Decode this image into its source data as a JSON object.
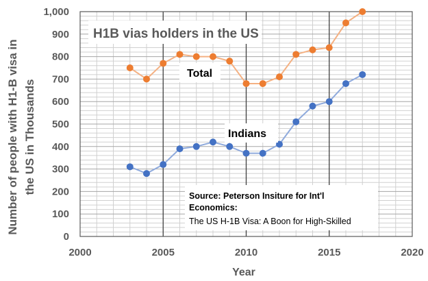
{
  "chart_data": {
    "type": "line",
    "title": "H1B vias holders in the US",
    "xlabel": "Year",
    "ylabel_line1": "Number of people with H1-B visa in",
    "ylabel_line2": "the US in Thousands",
    "xlim": [
      2000,
      2020
    ],
    "ylim": [
      0,
      1000
    ],
    "x_ticks": [
      "2000",
      "2005",
      "2010",
      "2015",
      "2020"
    ],
    "y_ticks": [
      "0",
      "100",
      "200",
      "300",
      "400",
      "500",
      "600",
      "700",
      "800",
      "900",
      "1,000"
    ],
    "grid": true,
    "x": [
      2003,
      2004,
      2005,
      2006,
      2007,
      2008,
      2009,
      2010,
      2011,
      2012,
      2013,
      2014,
      2015,
      2016,
      2017
    ],
    "series": [
      {
        "name": "Total",
        "color": "#ED7D31",
        "line_color": "#F4B183",
        "values": [
          750,
          700,
          770,
          810,
          800,
          800,
          780,
          680,
          680,
          710,
          810,
          830,
          840,
          950,
          1000
        ]
      },
      {
        "name": "Indians",
        "color": "#4472C4",
        "line_color": "#8FAADC",
        "values": [
          310,
          280,
          320,
          390,
          400,
          420,
          400,
          370,
          370,
          410,
          510,
          580,
          600,
          680,
          720
        ]
      }
    ],
    "source_box": {
      "line1": "Source: Peterson Insiture for Int'l",
      "line2": "Economics:",
      "line3": "The US H-1B Visa: A Boon for High-Skilled"
    }
  }
}
